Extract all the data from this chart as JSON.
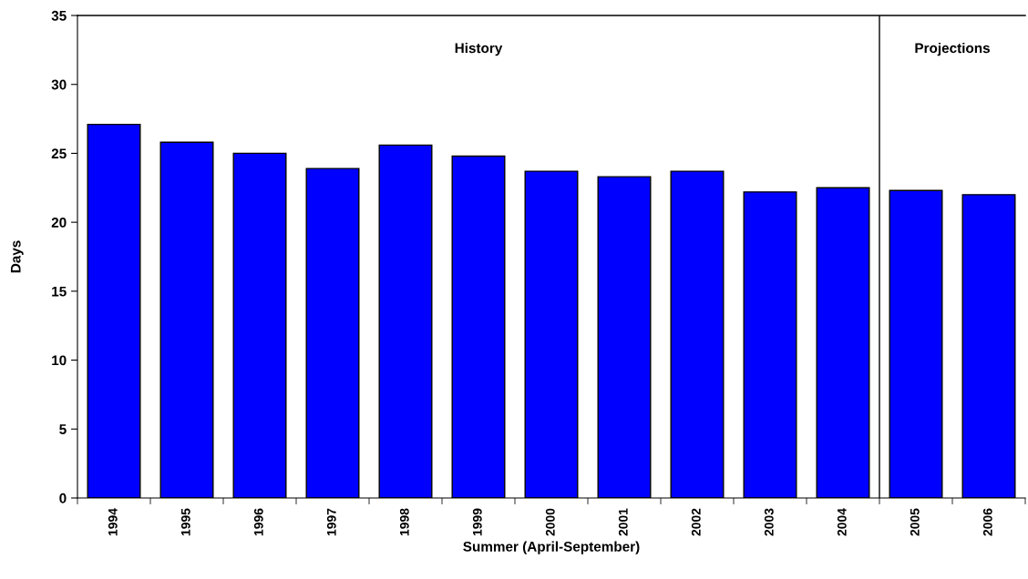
{
  "chart_data": {
    "type": "bar",
    "xlabel": "Summer (April-September)",
    "ylabel": "Days",
    "categories": [
      "1994",
      "1995",
      "1996",
      "1997",
      "1998",
      "1999",
      "2000",
      "2001",
      "2002",
      "2003",
      "2004",
      "2005",
      "2006"
    ],
    "values": [
      27.1,
      25.8,
      25.0,
      23.9,
      25.6,
      24.8,
      23.7,
      23.3,
      23.7,
      22.2,
      22.5,
      22.3,
      22.0
    ],
    "color": "#0000ff",
    "ylim": [
      0,
      35
    ],
    "yticks": [
      0,
      5,
      10,
      15,
      20,
      25,
      30,
      35
    ],
    "grid": false,
    "annotations": [
      "History",
      "Projections"
    ]
  }
}
